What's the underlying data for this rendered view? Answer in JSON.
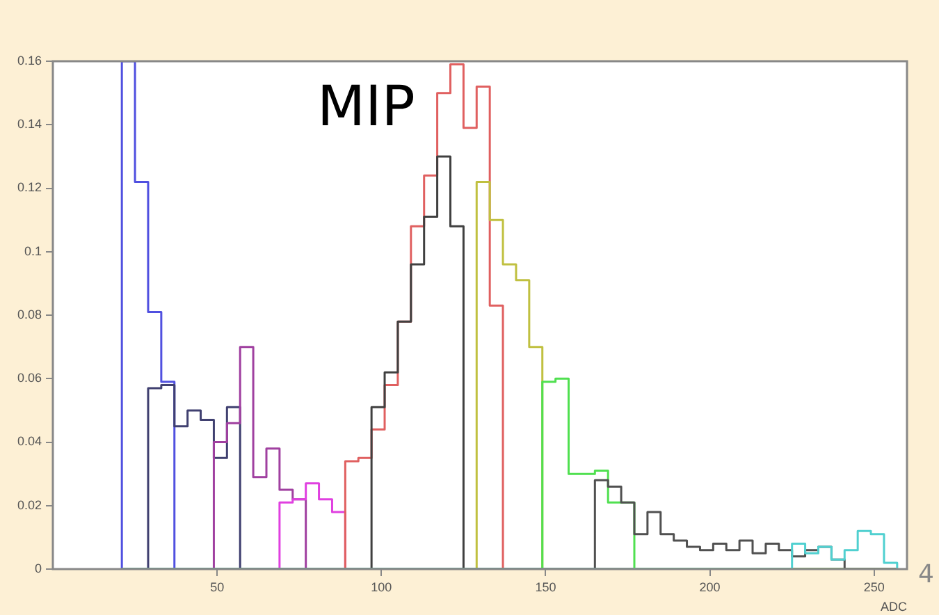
{
  "chart_data": {
    "type": "histogram",
    "xlabel": "ADC",
    "xlim": [
      0,
      260
    ],
    "xticks": [
      50,
      100,
      150,
      200,
      250
    ],
    "ylim": [
      0,
      0.16
    ],
    "yticks": [
      0,
      0.02,
      0.04,
      0.06,
      0.08,
      0.1,
      0.12,
      0.14,
      0.16
    ],
    "grid": false,
    "legend": false,
    "annotations": [
      "MIP",
      "4"
    ],
    "bins": [
      21,
      25,
      29,
      33,
      37,
      41,
      45,
      49,
      53,
      57,
      61,
      65,
      69,
      73,
      77,
      81,
      85,
      89,
      93,
      97,
      101,
      105,
      109,
      113,
      117,
      121,
      125,
      129,
      133,
      137,
      141,
      145,
      149,
      153,
      157,
      161,
      165,
      169,
      173,
      177,
      181,
      185,
      189,
      193,
      197,
      201,
      205,
      209,
      213,
      217,
      221,
      225,
      229,
      233,
      237,
      241,
      245,
      249,
      253,
      257
    ],
    "series": [
      {
        "color": "#5050e0",
        "values": [
          0.16,
          0.122,
          0.081,
          0.059,
          null,
          null,
          null,
          null,
          null,
          null,
          null,
          null,
          null,
          null,
          null,
          null,
          null,
          null,
          null,
          null,
          null,
          null,
          null,
          null,
          null,
          null,
          null,
          null,
          null,
          null,
          null,
          null,
          null,
          null,
          null,
          null,
          null,
          null,
          null,
          null,
          null,
          null,
          null,
          null,
          null,
          null,
          null,
          null,
          null,
          null,
          null,
          null,
          null,
          null,
          null,
          null,
          null,
          null,
          null
        ]
      },
      {
        "color": "#404070",
        "values": [
          null,
          null,
          0.057,
          0.058,
          0.045,
          0.05,
          0.047,
          0.035,
          0.051,
          null,
          null,
          null,
          null,
          null,
          null,
          null,
          null,
          null,
          null,
          null,
          null,
          null,
          null,
          null,
          null,
          null,
          null,
          null,
          null,
          null,
          null,
          null,
          null,
          null,
          null,
          null,
          null,
          null,
          null,
          null,
          null,
          null,
          null,
          null,
          null,
          null,
          null,
          null,
          null,
          null,
          null,
          null,
          null,
          null,
          null,
          null,
          null,
          null,
          null
        ]
      },
      {
        "color": "#a040a0",
        "values": [
          null,
          null,
          null,
          null,
          null,
          null,
          null,
          0.04,
          0.046,
          0.07,
          0.029,
          0.038,
          0.025,
          0.022,
          null,
          null,
          null,
          null,
          null,
          null,
          null,
          null,
          null,
          null,
          null,
          null,
          null,
          null,
          null,
          null,
          null,
          null,
          null,
          null,
          null,
          null,
          null,
          null,
          null,
          null,
          null,
          null,
          null,
          null,
          null,
          null,
          null,
          null,
          null,
          null,
          null,
          null,
          null,
          null,
          null,
          null,
          null,
          null,
          null
        ]
      },
      {
        "color": "#e040e0",
        "values": [
          null,
          null,
          null,
          null,
          null,
          null,
          null,
          null,
          null,
          null,
          null,
          null,
          0.021,
          0.022,
          0.027,
          0.022,
          0.018,
          null,
          null,
          null,
          null,
          null,
          null,
          null,
          null,
          null,
          null,
          null,
          null,
          null,
          null,
          null,
          null,
          null,
          null,
          null,
          null,
          null,
          null,
          null,
          null,
          null,
          null,
          null,
          null,
          null,
          null,
          null,
          null,
          null,
          null,
          null,
          null,
          null,
          null,
          null,
          null,
          null,
          null
        ]
      },
      {
        "color": "#e06060",
        "values": [
          null,
          null,
          null,
          null,
          null,
          null,
          null,
          null,
          null,
          null,
          null,
          null,
          null,
          null,
          null,
          null,
          null,
          0.034,
          0.035,
          0.044,
          0.058,
          0.078,
          0.108,
          0.124,
          0.15,
          0.159,
          0.139,
          0.152,
          0.083,
          null,
          null,
          null,
          null,
          null,
          null,
          null,
          null,
          null,
          null,
          null,
          null,
          null,
          null,
          null,
          null,
          null,
          null,
          null,
          null,
          null,
          null,
          null,
          null,
          null,
          null,
          null,
          null,
          null,
          null
        ]
      },
      {
        "color": "#404040",
        "values": [
          null,
          null,
          null,
          null,
          null,
          null,
          null,
          null,
          null,
          null,
          null,
          null,
          null,
          null,
          null,
          null,
          null,
          null,
          null,
          0.051,
          0.062,
          0.078,
          0.096,
          0.111,
          0.13,
          0.108,
          null,
          null,
          null,
          null,
          null,
          null,
          null,
          null,
          null,
          null,
          null,
          null,
          null,
          null,
          null,
          null,
          null,
          null,
          null,
          null,
          null,
          null,
          null,
          null,
          null,
          null,
          null,
          null,
          null,
          null,
          null,
          null,
          null
        ]
      },
      {
        "color": "#c0c040",
        "values": [
          null,
          null,
          null,
          null,
          null,
          null,
          null,
          null,
          null,
          null,
          null,
          null,
          null,
          null,
          null,
          null,
          null,
          null,
          null,
          null,
          null,
          null,
          null,
          null,
          null,
          null,
          null,
          0.122,
          0.11,
          0.096,
          0.091,
          0.07,
          null,
          null,
          null,
          null,
          null,
          null,
          null,
          null,
          null,
          null,
          null,
          null,
          null,
          null,
          null,
          null,
          null,
          null,
          null,
          null,
          null,
          null,
          null,
          null,
          null,
          null,
          null
        ]
      },
      {
        "color": "#50e050",
        "values": [
          null,
          null,
          null,
          null,
          null,
          null,
          null,
          null,
          null,
          null,
          null,
          null,
          null,
          null,
          null,
          null,
          null,
          null,
          null,
          null,
          null,
          null,
          null,
          null,
          null,
          null,
          null,
          null,
          null,
          null,
          null,
          null,
          0.059,
          0.06,
          0.03,
          0.03,
          0.031,
          0.021,
          0.021,
          null,
          null,
          null,
          null,
          null,
          null,
          null,
          null,
          null,
          null,
          null,
          null,
          null,
          null,
          null,
          null,
          null,
          null,
          null,
          null
        ]
      },
      {
        "color": "#505050",
        "values": [
          null,
          null,
          null,
          null,
          null,
          null,
          null,
          null,
          null,
          null,
          null,
          null,
          null,
          null,
          null,
          null,
          null,
          null,
          null,
          null,
          null,
          null,
          null,
          null,
          null,
          null,
          null,
          null,
          null,
          null,
          null,
          null,
          null,
          null,
          null,
          null,
          0.028,
          0.026,
          0.021,
          0.011,
          0.018,
          0.011,
          0.009,
          0.007,
          0.006,
          0.008,
          0.006,
          0.009,
          0.005,
          0.008,
          0.006,
          0.004,
          0.006,
          0.007,
          0.003,
          null,
          null,
          null,
          null
        ]
      },
      {
        "color": "#50d0d0",
        "values": [
          null,
          null,
          null,
          null,
          null,
          null,
          null,
          null,
          null,
          null,
          null,
          null,
          null,
          null,
          null,
          null,
          null,
          null,
          null,
          null,
          null,
          null,
          null,
          null,
          null,
          null,
          null,
          null,
          null,
          null,
          null,
          null,
          null,
          null,
          null,
          null,
          null,
          null,
          null,
          null,
          null,
          null,
          null,
          null,
          null,
          null,
          null,
          null,
          null,
          null,
          null,
          0.008,
          0.005,
          0.007,
          0.003,
          0.006,
          0.012,
          0.011,
          0.002
        ]
      }
    ]
  }
}
